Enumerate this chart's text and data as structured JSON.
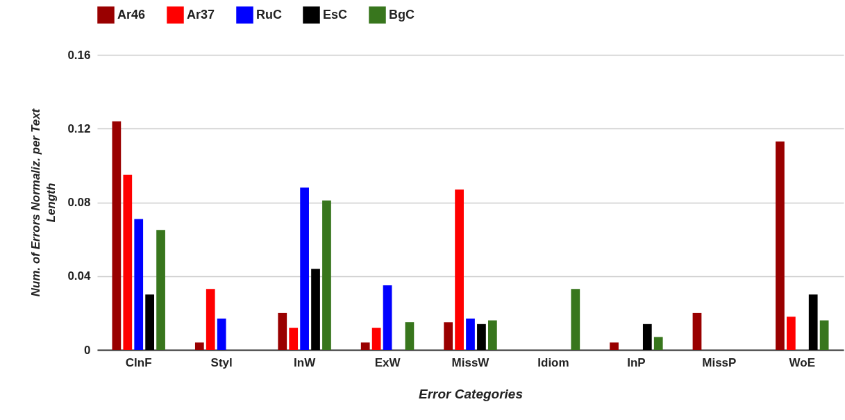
{
  "chart_data": {
    "type": "bar",
    "xlabel": "Error Categories",
    "ylabel": "Num. of Errors Normaliz. per Text Length",
    "categories": [
      "ClnF",
      "Styl",
      "InW",
      "ExW",
      "MissW",
      "Idiom",
      "InP",
      "MissP",
      "WoE"
    ],
    "series": [
      {
        "name": "Ar46",
        "color": "#990000",
        "values": [
          0.124,
          0.004,
          0.02,
          0.004,
          0.015,
          0,
          0.004,
          0.02,
          0.113
        ]
      },
      {
        "name": "Ar37",
        "color": "#ff0000",
        "values": [
          0.095,
          0.033,
          0.012,
          0.012,
          0.087,
          0,
          0,
          0,
          0.018
        ]
      },
      {
        "name": "RuC",
        "color": "#0000ff",
        "values": [
          0.071,
          0.017,
          0.088,
          0.035,
          0.017,
          0,
          0,
          0,
          0
        ]
      },
      {
        "name": "EsC",
        "color": "#000000",
        "values": [
          0.03,
          0,
          0.044,
          0,
          0.014,
          0,
          0.014,
          0,
          0.03
        ]
      },
      {
        "name": "BgC",
        "color": "#38761d",
        "values": [
          0.065,
          0,
          0.081,
          0.015,
          0.016,
          0.033,
          0.007,
          0,
          0.016
        ]
      }
    ],
    "ylim": [
      0,
      0.16
    ],
    "yticks": [
      0,
      0.04,
      0.08,
      0.12,
      0.16
    ],
    "grid": "y",
    "legend": "top left"
  }
}
